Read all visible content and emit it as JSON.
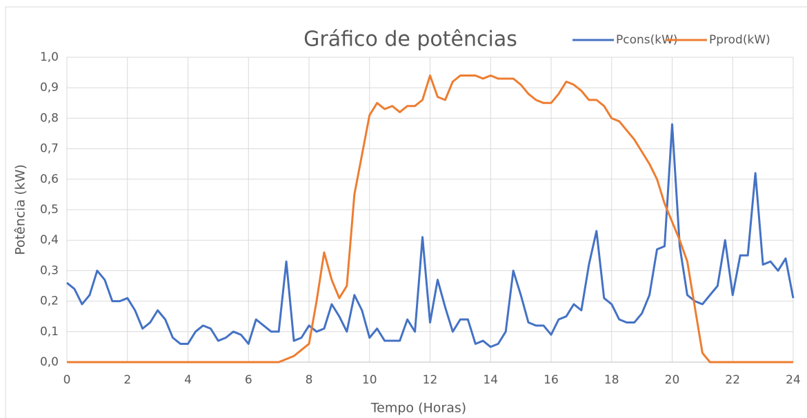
{
  "chart_data": {
    "type": "line",
    "title": "Gráfico de potências",
    "xlabel": "Tempo (Horas)",
    "ylabel": "Potência (kW)",
    "x": [
      0,
      0.25,
      0.5,
      0.75,
      1,
      1.25,
      1.5,
      1.75,
      2,
      2.25,
      2.5,
      2.75,
      3,
      3.25,
      3.5,
      3.75,
      4,
      4.25,
      4.5,
      4.75,
      5,
      5.25,
      5.5,
      5.75,
      6,
      6.25,
      6.5,
      6.75,
      7,
      7.25,
      7.5,
      7.75,
      8,
      8.25,
      8.5,
      8.75,
      9,
      9.25,
      9.5,
      9.75,
      10,
      10.25,
      10.5,
      10.75,
      11,
      11.25,
      11.5,
      11.75,
      12,
      12.25,
      12.5,
      12.75,
      13,
      13.25,
      13.5,
      13.75,
      14,
      14.25,
      14.5,
      14.75,
      15,
      15.25,
      15.5,
      15.75,
      16,
      16.25,
      16.5,
      16.75,
      17,
      17.25,
      17.5,
      17.75,
      18,
      18.25,
      18.5,
      18.75,
      19,
      19.25,
      19.5,
      19.75,
      20,
      20.25,
      20.5,
      20.75,
      21,
      21.25,
      21.5,
      21.75,
      22,
      22.25,
      22.5,
      22.75,
      23,
      23.25,
      23.5,
      23.75,
      24
    ],
    "series": [
      {
        "name": "Pcons(kW)",
        "color": "#4472c4",
        "values": [
          0.26,
          0.24,
          0.19,
          0.22,
          0.3,
          0.27,
          0.2,
          0.2,
          0.21,
          0.17,
          0.11,
          0.13,
          0.17,
          0.14,
          0.08,
          0.06,
          0.06,
          0.1,
          0.12,
          0.11,
          0.07,
          0.08,
          0.1,
          0.09,
          0.06,
          0.14,
          0.12,
          0.1,
          0.1,
          0.33,
          0.07,
          0.08,
          0.12,
          0.1,
          0.11,
          0.19,
          0.15,
          0.1,
          0.22,
          0.17,
          0.08,
          0.11,
          0.07,
          0.07,
          0.07,
          0.14,
          0.1,
          0.41,
          0.13,
          0.27,
          0.18,
          0.1,
          0.14,
          0.14,
          0.06,
          0.07,
          0.05,
          0.06,
          0.1,
          0.3,
          0.22,
          0.13,
          0.12,
          0.12,
          0.09,
          0.14,
          0.15,
          0.19,
          0.17,
          0.32,
          0.43,
          0.21,
          0.19,
          0.14,
          0.13,
          0.13,
          0.16,
          0.22,
          0.37,
          0.38,
          0.78,
          0.38,
          0.22,
          0.2,
          0.19,
          0.22,
          0.25,
          0.4,
          0.22,
          0.35,
          0.35,
          0.62,
          0.32,
          0.33,
          0.3,
          0.34,
          0.21
        ]
      },
      {
        "name": "Pprod(kW)",
        "color": "#ed7d31",
        "values": [
          0,
          0,
          0,
          0,
          0,
          0,
          0,
          0,
          0,
          0,
          0,
          0,
          0,
          0,
          0,
          0,
          0,
          0,
          0,
          0,
          0,
          0,
          0,
          0,
          0,
          0,
          0,
          0,
          0,
          0.01,
          0.02,
          0.04,
          0.06,
          0.2,
          0.36,
          0.27,
          0.21,
          0.25,
          0.55,
          0.68,
          0.81,
          0.85,
          0.83,
          0.84,
          0.82,
          0.84,
          0.84,
          0.86,
          0.94,
          0.87,
          0.86,
          0.92,
          0.94,
          0.94,
          0.94,
          0.93,
          0.94,
          0.93,
          0.93,
          0.93,
          0.91,
          0.88,
          0.86,
          0.85,
          0.85,
          0.88,
          0.92,
          0.91,
          0.89,
          0.86,
          0.86,
          0.84,
          0.8,
          0.79,
          0.76,
          0.73,
          0.69,
          0.65,
          0.6,
          0.52,
          0.46,
          0.4,
          0.33,
          0.18,
          0.03,
          0,
          0,
          0,
          0,
          0,
          0,
          0,
          0,
          0,
          0,
          0,
          0
        ]
      }
    ],
    "xlim": [
      0,
      24
    ],
    "xticks": [
      0,
      2,
      4,
      6,
      8,
      10,
      12,
      14,
      16,
      18,
      20,
      22,
      24
    ],
    "ylim": [
      0,
      1
    ],
    "yticks": [
      {
        "value": 0,
        "label": "0,0"
      },
      {
        "value": 0.1,
        "label": "0,1"
      },
      {
        "value": 0.2,
        "label": "0,2"
      },
      {
        "value": 0.3,
        "label": "0,3"
      },
      {
        "value": 0.4,
        "label": "0,4"
      },
      {
        "value": 0.5,
        "label": "0,5"
      },
      {
        "value": 0.6,
        "label": "0,6"
      },
      {
        "value": 0.7,
        "label": "0,7"
      },
      {
        "value": 0.8,
        "label": "0,8"
      },
      {
        "value": 0.9,
        "label": "0,9"
      },
      {
        "value": 1,
        "label": "1,0"
      }
    ],
    "grid": true,
    "legend": "top-right"
  }
}
